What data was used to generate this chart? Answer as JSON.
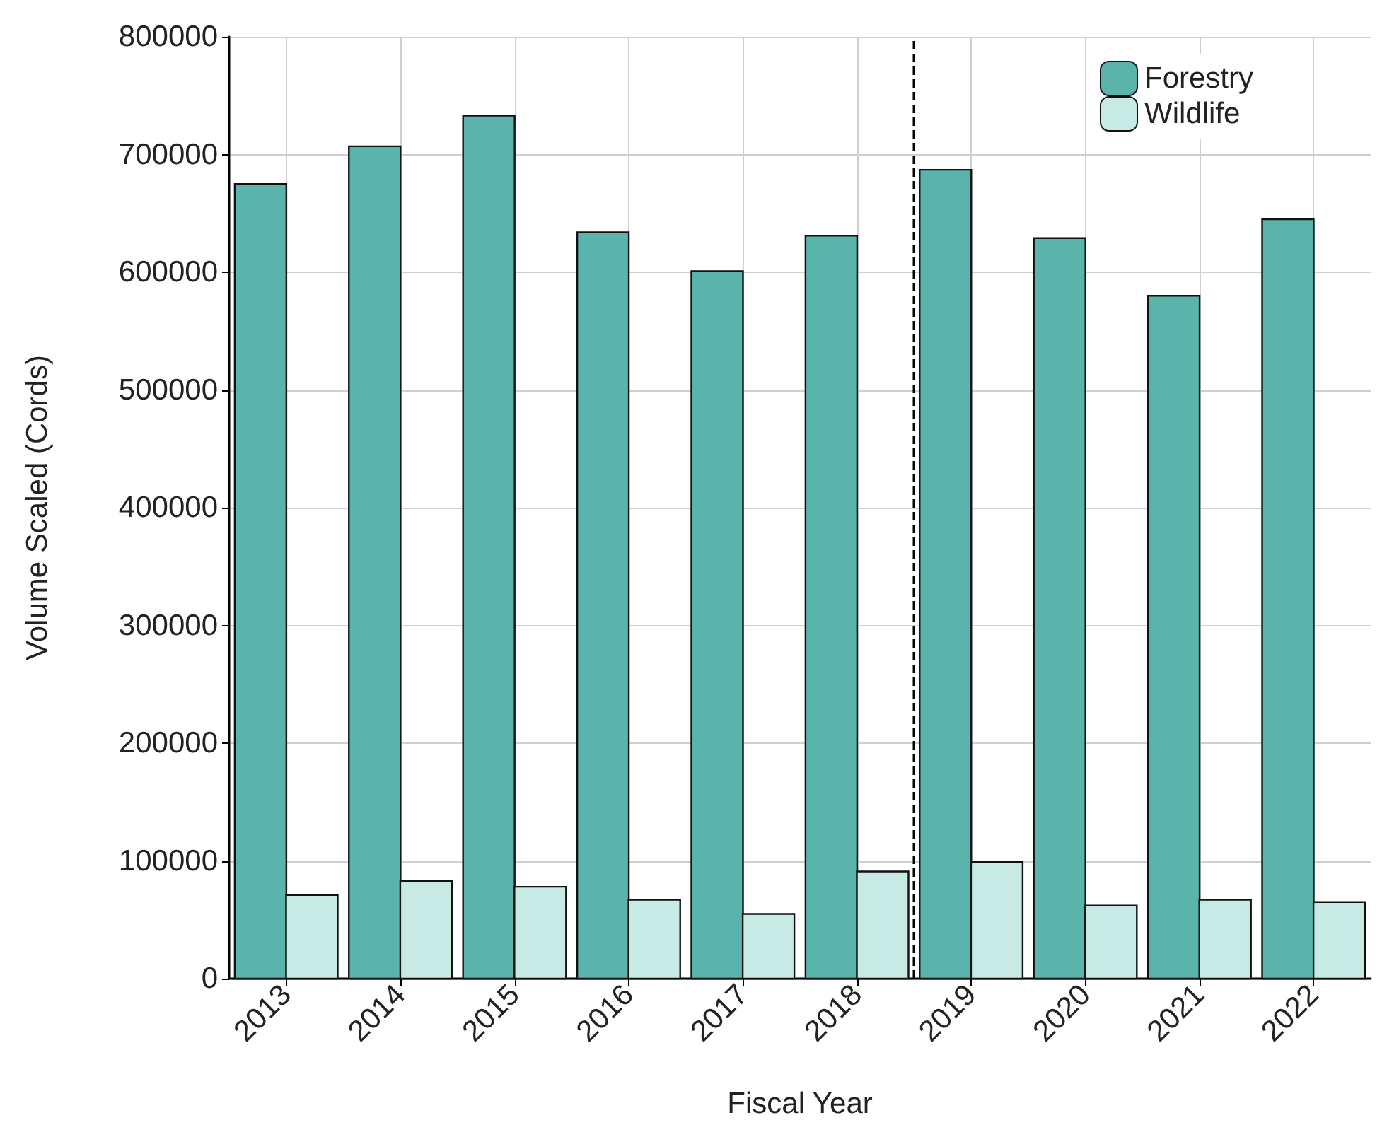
{
  "chart_data": {
    "type": "bar",
    "xlabel": "Fiscal Year",
    "ylabel": "Volume Scaled (Cords)",
    "x": [
      2013,
      2014,
      2015,
      2016,
      2017,
      2018,
      2019,
      2020,
      2021,
      2022
    ],
    "xlim": [
      2012.5,
      2022.5
    ],
    "xticks": [
      2013,
      2014,
      2015,
      2016,
      2017,
      2018,
      2019,
      2020,
      2021,
      2022
    ],
    "series": [
      {
        "name": "Forestry",
        "color": "#5ab4ac",
        "values": [
          675000,
          707000,
          733000,
          634000,
          601000,
          631000,
          687000,
          629000,
          580000,
          645000
        ]
      },
      {
        "name": "Wildlife",
        "color": "#c7eae5",
        "values": [
          71000,
          83000,
          78000,
          67000,
          55000,
          91000,
          99000,
          62000,
          67000,
          65000
        ]
      }
    ],
    "ylim": [
      0,
      800000
    ],
    "yticks": [
      0,
      100000,
      200000,
      300000,
      400000,
      500000,
      600000,
      700000,
      800000
    ],
    "grid": true,
    "legend": "top right",
    "ref_lines": [
      {
        "axis": "x",
        "value": 2018.5,
        "color": "#000000",
        "line_style": "dashed"
      }
    ]
  }
}
